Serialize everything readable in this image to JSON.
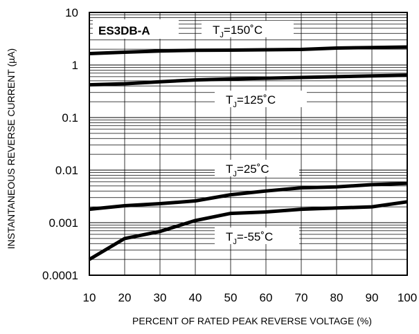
{
  "chart_data": {
    "type": "line",
    "title": "ES3DB-A",
    "xlabel": "PERCENT OF RATED PEAK REVERSE VOLTAGE (%)",
    "ylabel": "INSTANTANEOUS REVERSE CURRENT (µA)",
    "x_ticks": [
      "10",
      "20",
      "30",
      "40",
      "50",
      "60",
      "70",
      "80",
      "90",
      "100"
    ],
    "y_ticks": [
      {
        "value": 10,
        "label": "10"
      },
      {
        "value": 1,
        "label": "1"
      },
      {
        "value": 0.1,
        "label": "0.1"
      },
      {
        "value": 0.01,
        "label": "0.01"
      },
      {
        "value": 0.001,
        "label": "0.001"
      },
      {
        "value": 0.0001,
        "label": "0.0001"
      }
    ],
    "xlim": [
      10,
      100
    ],
    "ylim": [
      0.0001,
      10
    ],
    "yscale": "log",
    "grid": true,
    "x": [
      10,
      20,
      30,
      40,
      50,
      60,
      70,
      80,
      90,
      100
    ],
    "series": [
      {
        "name": "TJ=150°C",
        "label_main": "T",
        "label_sub": "J",
        "label_rest": "=150˚C",
        "values": [
          1.65,
          1.75,
          1.85,
          1.9,
          1.92,
          1.95,
          1.98,
          2.1,
          2.15,
          2.2
        ]
      },
      {
        "name": "TJ=125°C",
        "label_main": "T",
        "label_sub": "J",
        "label_rest": "=125˚C",
        "values": [
          0.42,
          0.44,
          0.48,
          0.52,
          0.54,
          0.56,
          0.58,
          0.6,
          0.62,
          0.64
        ]
      },
      {
        "name": "TJ=25°C",
        "label_main": "T",
        "label_sub": "J",
        "label_rest": "=25˚C",
        "values": [
          0.0018,
          0.0021,
          0.0023,
          0.0026,
          0.0034,
          0.004,
          0.0046,
          0.0048,
          0.0053,
          0.0056
        ]
      },
      {
        "name": "TJ=-55°C",
        "label_main": "T",
        "label_sub": "J",
        "label_rest": "=-55˚C",
        "values": [
          0.0002,
          0.0005,
          0.00068,
          0.0011,
          0.0015,
          0.0016,
          0.0018,
          0.0019,
          0.002,
          0.0025
        ]
      }
    ]
  }
}
